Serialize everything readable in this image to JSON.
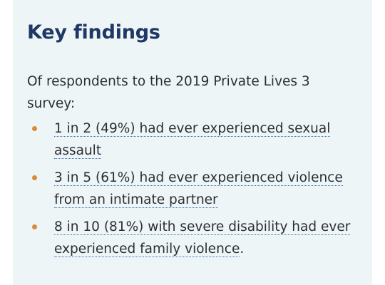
{
  "card": {
    "title": "Key findings",
    "intro": "Of respondents to the 2019 Private Lives 3 survey:",
    "bullet_color": "#d9893a",
    "findings": [
      {
        "link_text": "1 in 2 (49%) had ever experienced sexual assault",
        "suffix": ""
      },
      {
        "link_text": "3 in 5 (61%) had ever experienced violence from an intimate partner",
        "suffix": ""
      },
      {
        "link_text": "8 in 10 (81%) with severe disability had ever experienced family violence",
        "suffix": "."
      }
    ]
  }
}
